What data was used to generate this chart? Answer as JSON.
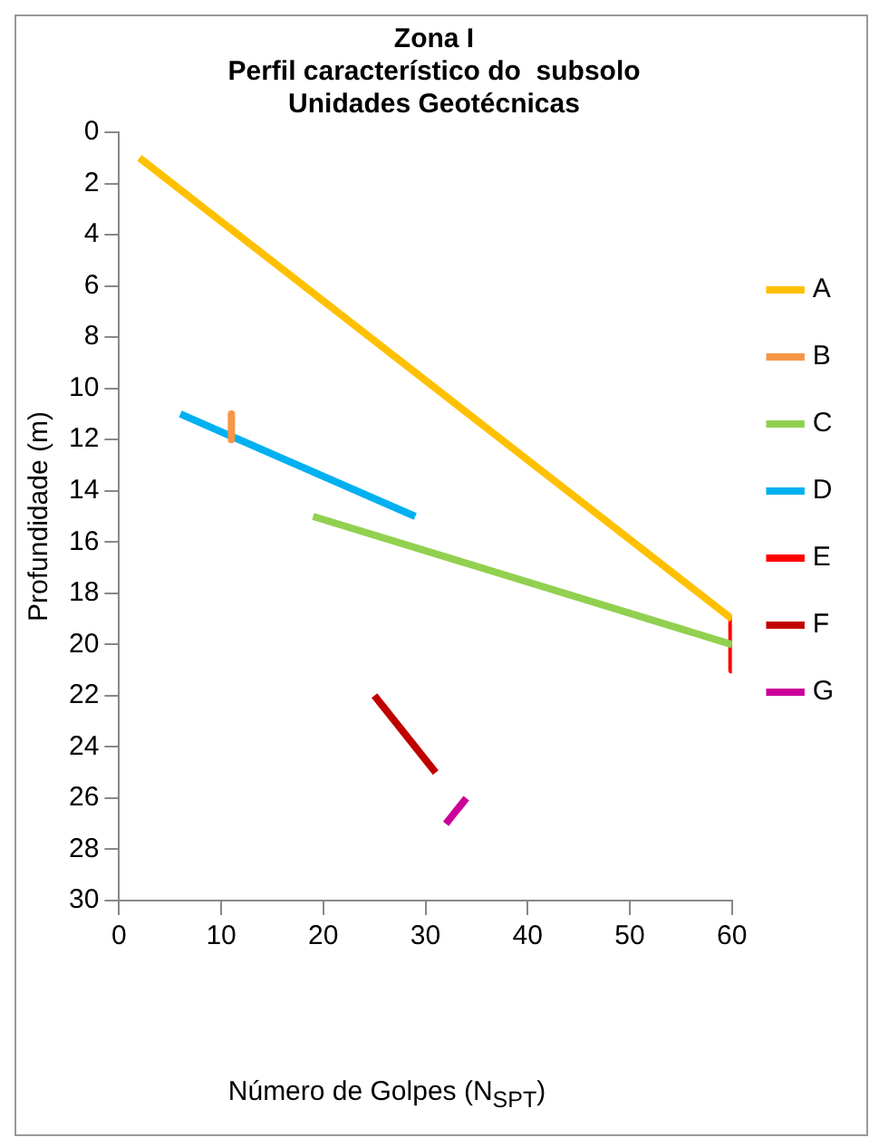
{
  "chart_data": {
    "type": "line",
    "title": "Zona I\nPerfil característico do  subsolo\nUnidades Geotécnicas",
    "xlabel": "Número de Golpes (N$_{SPT}$)",
    "ylabel": "Profundidade (m)",
    "series": [
      {
        "name": "A",
        "color": "#ffc000",
        "x": [
          2,
          60
        ],
        "values": [
          1,
          19
        ]
      },
      {
        "name": "B",
        "color": "#f79646",
        "x": [
          11,
          11
        ],
        "values": [
          11,
          12
        ]
      },
      {
        "name": "C",
        "color": "#92d050",
        "x": [
          19,
          60
        ],
        "values": [
          15,
          20
        ]
      },
      {
        "name": "D",
        "color": "#00b0f0",
        "x": [
          6,
          29
        ],
        "values": [
          11,
          15
        ]
      },
      {
        "name": "E",
        "color": "#ff0000",
        "x": [
          60,
          60
        ],
        "values": [
          19,
          21
        ]
      },
      {
        "name": "F",
        "color": "#c00000",
        "x": [
          25,
          31
        ],
        "values": [
          22,
          25
        ]
      },
      {
        "name": "G",
        "color": "#cc0099",
        "x": [
          32,
          34
        ],
        "values": [
          27,
          26
        ]
      }
    ],
    "xlim": [
      0,
      60
    ],
    "xticks": [
      0,
      10,
      20,
      30,
      40,
      50,
      60
    ],
    "ylim": [
      30,
      0
    ],
    "yticks": [
      0,
      2,
      4,
      6,
      8,
      10,
      12,
      14,
      16,
      18,
      20,
      22,
      24,
      26,
      28,
      30
    ],
    "grid": false,
    "legend": "right",
    "marker": "none",
    "line_style": "solid"
  }
}
